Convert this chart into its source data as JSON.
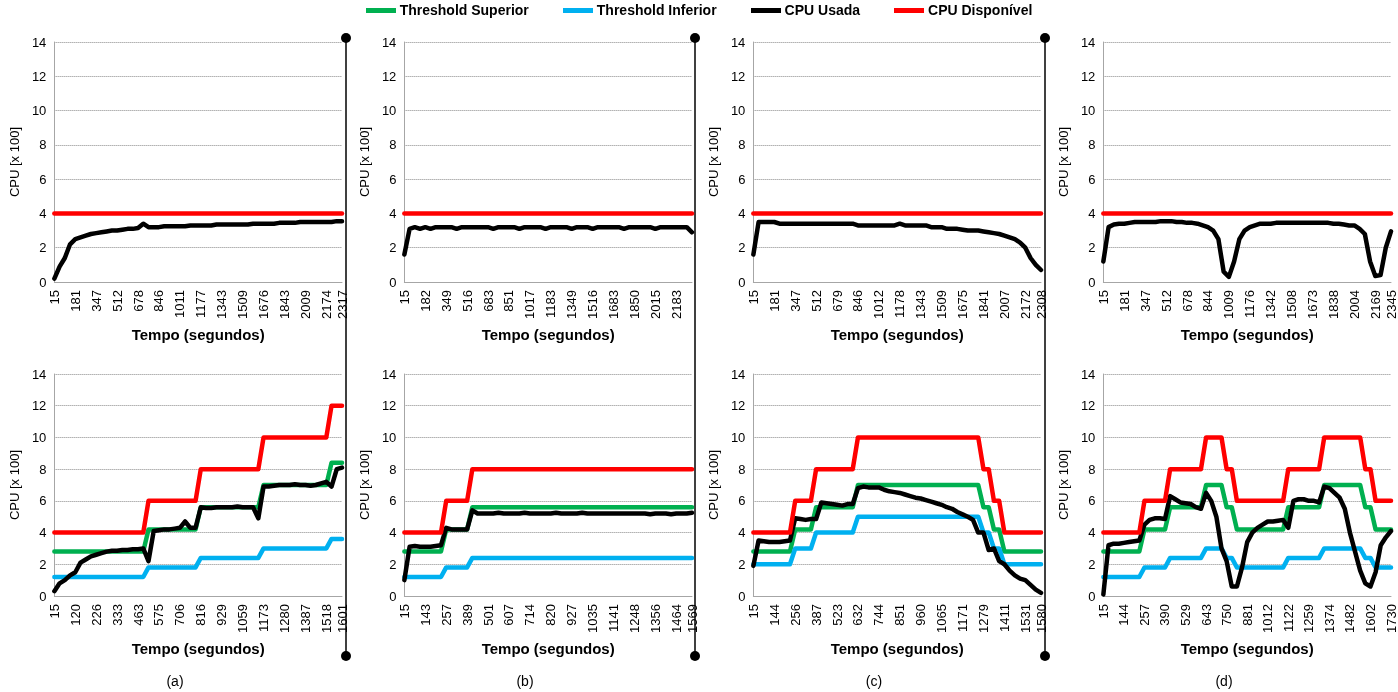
{
  "chart_data": [
    {
      "type": "line",
      "xlabel": "Tempo (segundos)",
      "ylabel": "CPU [x 100]",
      "ylim": [
        0,
        14
      ],
      "yticks": [
        0,
        2,
        4,
        6,
        8,
        10,
        12,
        14
      ],
      "grid": "y",
      "legend": "top",
      "marker": "none",
      "line_style": "solid",
      "categories": [
        "15",
        null,
        null,
        null,
        "181",
        null,
        null,
        null,
        "347",
        null,
        null,
        null,
        "512",
        null,
        null,
        null,
        "678",
        null,
        null,
        null,
        "846",
        null,
        null,
        null,
        "1011",
        null,
        null,
        null,
        "1177",
        null,
        null,
        null,
        "1343",
        null,
        null,
        null,
        "1509",
        null,
        null,
        null,
        "1676",
        null,
        null,
        null,
        "1843",
        null,
        null,
        null,
        "2009",
        null,
        null,
        null,
        "2174",
        null,
        null,
        "2317"
      ],
      "series": [
        {
          "name": "CPU Usada",
          "color": "#000000",
          "values": [
            0.2,
            0.9,
            1.4,
            2.2,
            2.5,
            2.6,
            2.7,
            2.8,
            2.85,
            2.9,
            2.95,
            3.0,
            3.0,
            3.05,
            3.1,
            3.1,
            3.15,
            3.4,
            3.2,
            3.2,
            3.2,
            3.25,
            3.25,
            3.25,
            3.25,
            3.25,
            3.3,
            3.3,
            3.3,
            3.3,
            3.3,
            3.35,
            3.35,
            3.35,
            3.35,
            3.35,
            3.35,
            3.35,
            3.4,
            3.4,
            3.4,
            3.4,
            3.4,
            3.45,
            3.45,
            3.45,
            3.45,
            3.5,
            3.5,
            3.5,
            3.5,
            3.5,
            3.5,
            3.5,
            3.55,
            3.55
          ]
        },
        {
          "name": "CPU Disponível",
          "color": "#ff0000",
          "values": [
            4,
            4,
            4,
            4,
            4,
            4,
            4,
            4,
            4,
            4,
            4,
            4,
            4,
            4,
            4,
            4,
            4,
            4,
            4,
            4,
            4,
            4,
            4,
            4,
            4,
            4,
            4,
            4,
            4,
            4,
            4,
            4,
            4,
            4,
            4,
            4,
            4,
            4,
            4,
            4,
            4,
            4,
            4,
            4,
            4,
            4,
            4,
            4,
            4,
            4,
            4,
            4,
            4,
            4,
            4,
            4
          ]
        }
      ]
    },
    {
      "type": "line",
      "xlabel": "Tempo (segundos)",
      "ylabel": "CPU [x 100]",
      "ylim": [
        0,
        14
      ],
      "yticks": [
        0,
        2,
        4,
        6,
        8,
        10,
        12,
        14
      ],
      "grid": "y",
      "legend": "top",
      "marker": "none",
      "line_style": "solid",
      "categories": [
        "15",
        null,
        null,
        null,
        "182",
        null,
        null,
        null,
        "349",
        null,
        null,
        null,
        "516",
        null,
        null,
        null,
        "683",
        null,
        null,
        null,
        "851",
        null,
        null,
        null,
        "1017",
        null,
        null,
        null,
        "1183",
        null,
        null,
        null,
        "1349",
        null,
        null,
        null,
        "1516",
        null,
        null,
        null,
        "1683",
        null,
        null,
        null,
        "1850",
        null,
        null,
        null,
        "2015",
        null,
        null,
        null,
        "2183",
        null,
        null,
        null
      ],
      "series": [
        {
          "name": "CPU Usada",
          "color": "#000000",
          "values": [
            1.6,
            3.1,
            3.2,
            3.1,
            3.2,
            3.1,
            3.2,
            3.2,
            3.2,
            3.2,
            3.1,
            3.2,
            3.2,
            3.2,
            3.2,
            3.2,
            3.2,
            3.1,
            3.2,
            3.2,
            3.2,
            3.2,
            3.1,
            3.2,
            3.2,
            3.2,
            3.2,
            3.1,
            3.2,
            3.2,
            3.2,
            3.2,
            3.1,
            3.2,
            3.2,
            3.2,
            3.1,
            3.2,
            3.2,
            3.2,
            3.2,
            3.2,
            3.1,
            3.2,
            3.2,
            3.2,
            3.2,
            3.2,
            3.1,
            3.2,
            3.2,
            3.2,
            3.2,
            3.2,
            3.2,
            2.9
          ]
        },
        {
          "name": "CPU Disponível",
          "color": "#ff0000",
          "values": [
            4,
            4,
            4,
            4,
            4,
            4,
            4,
            4,
            4,
            4,
            4,
            4,
            4,
            4,
            4,
            4,
            4,
            4,
            4,
            4,
            4,
            4,
            4,
            4,
            4,
            4,
            4,
            4,
            4,
            4,
            4,
            4,
            4,
            4,
            4,
            4,
            4,
            4,
            4,
            4,
            4,
            4,
            4,
            4,
            4,
            4,
            4,
            4,
            4,
            4,
            4,
            4,
            4,
            4,
            4,
            4
          ]
        }
      ]
    },
    {
      "type": "line",
      "xlabel": "Tempo (segundos)",
      "ylabel": "CPU [x 100]",
      "ylim": [
        0,
        14
      ],
      "yticks": [
        0,
        2,
        4,
        6,
        8,
        10,
        12,
        14
      ],
      "grid": "y",
      "legend": "top",
      "marker": "none",
      "line_style": "solid",
      "categories": [
        "15",
        null,
        null,
        null,
        "181",
        null,
        null,
        null,
        "347",
        null,
        null,
        null,
        "512",
        null,
        null,
        null,
        "679",
        null,
        null,
        null,
        "846",
        null,
        null,
        null,
        "1012",
        null,
        null,
        null,
        "1178",
        null,
        null,
        null,
        "1343",
        null,
        null,
        null,
        "1509",
        null,
        null,
        null,
        "1675",
        null,
        null,
        null,
        "1841",
        null,
        null,
        null,
        "2007",
        null,
        null,
        null,
        "2172",
        null,
        null,
        "2308"
      ],
      "series": [
        {
          "name": "CPU Usada",
          "color": "#000000",
          "values": [
            1.6,
            3.5,
            3.5,
            3.5,
            3.5,
            3.4,
            3.4,
            3.4,
            3.4,
            3.4,
            3.4,
            3.4,
            3.4,
            3.4,
            3.4,
            3.4,
            3.4,
            3.4,
            3.4,
            3.4,
            3.3,
            3.3,
            3.3,
            3.3,
            3.3,
            3.3,
            3.3,
            3.3,
            3.4,
            3.3,
            3.3,
            3.3,
            3.3,
            3.3,
            3.2,
            3.2,
            3.2,
            3.1,
            3.1,
            3.1,
            3.05,
            3.0,
            3.0,
            3.0,
            2.95,
            2.9,
            2.85,
            2.8,
            2.7,
            2.6,
            2.5,
            2.3,
            2.0,
            1.4,
            1.0,
            0.7
          ]
        },
        {
          "name": "CPU Disponível",
          "color": "#ff0000",
          "values": [
            4,
            4,
            4,
            4,
            4,
            4,
            4,
            4,
            4,
            4,
            4,
            4,
            4,
            4,
            4,
            4,
            4,
            4,
            4,
            4,
            4,
            4,
            4,
            4,
            4,
            4,
            4,
            4,
            4,
            4,
            4,
            4,
            4,
            4,
            4,
            4,
            4,
            4,
            4,
            4,
            4,
            4,
            4,
            4,
            4,
            4,
            4,
            4,
            4,
            4,
            4,
            4,
            4,
            4,
            4,
            4
          ]
        }
      ]
    },
    {
      "type": "line",
      "xlabel": "Tempo (segundos)",
      "ylabel": "CPU [x 100]",
      "ylim": [
        0,
        14
      ],
      "yticks": [
        0,
        2,
        4,
        6,
        8,
        10,
        12,
        14
      ],
      "grid": "y",
      "legend": "top",
      "marker": "none",
      "line_style": "solid",
      "categories": [
        "15",
        null,
        null,
        null,
        "181",
        null,
        null,
        null,
        "347",
        null,
        null,
        null,
        "512",
        null,
        null,
        null,
        "678",
        null,
        null,
        null,
        "844",
        null,
        null,
        null,
        "1009",
        null,
        null,
        null,
        "1176",
        null,
        null,
        null,
        "1342",
        null,
        null,
        null,
        "1508",
        null,
        null,
        null,
        "1673",
        null,
        null,
        null,
        "1838",
        null,
        null,
        null,
        "2004",
        null,
        null,
        null,
        "2169",
        null,
        null,
        "2345"
      ],
      "series": [
        {
          "name": "CPU Usada",
          "color": "#000000",
          "values": [
            1.2,
            3.2,
            3.35,
            3.4,
            3.4,
            3.45,
            3.5,
            3.5,
            3.5,
            3.5,
            3.5,
            3.55,
            3.55,
            3.55,
            3.5,
            3.5,
            3.45,
            3.45,
            3.4,
            3.3,
            3.2,
            3.0,
            2.5,
            0.6,
            0.3,
            1.2,
            2.5,
            3.0,
            3.2,
            3.3,
            3.4,
            3.4,
            3.4,
            3.45,
            3.45,
            3.45,
            3.45,
            3.45,
            3.45,
            3.45,
            3.45,
            3.45,
            3.45,
            3.45,
            3.4,
            3.4,
            3.35,
            3.3,
            3.3,
            3.1,
            2.8,
            1.2,
            0.35,
            0.4,
            2.0,
            2.95
          ]
        },
        {
          "name": "CPU Disponível",
          "color": "#ff0000",
          "values": [
            4,
            4,
            4,
            4,
            4,
            4,
            4,
            4,
            4,
            4,
            4,
            4,
            4,
            4,
            4,
            4,
            4,
            4,
            4,
            4,
            4,
            4,
            4,
            4,
            4,
            4,
            4,
            4,
            4,
            4,
            4,
            4,
            4,
            4,
            4,
            4,
            4,
            4,
            4,
            4,
            4,
            4,
            4,
            4,
            4,
            4,
            4,
            4,
            4,
            4,
            4,
            4,
            4,
            4,
            4,
            4
          ]
        }
      ]
    },
    {
      "type": "line",
      "xlabel": "Tempo (segundos)",
      "ylabel": "CPU [x 100]",
      "ylim": [
        0,
        14
      ],
      "yticks": [
        0,
        2,
        4,
        6,
        8,
        10,
        12,
        14
      ],
      "grid": "y",
      "legend": "top",
      "marker": "none",
      "line_style": "solid",
      "annotations": [
        "(a)"
      ],
      "categories": [
        "15",
        null,
        null,
        null,
        "120",
        null,
        null,
        null,
        "226",
        null,
        null,
        null,
        "333",
        null,
        null,
        null,
        "463",
        null,
        null,
        null,
        "575",
        null,
        null,
        null,
        "706",
        null,
        null,
        null,
        "816",
        null,
        null,
        null,
        "929",
        null,
        null,
        null,
        "1059",
        null,
        null,
        null,
        "1173",
        null,
        null,
        null,
        "1280",
        null,
        null,
        null,
        "1387",
        null,
        null,
        null,
        "1518",
        null,
        null,
        "1601"
      ],
      "series": [
        {
          "name": "Threshold Superior",
          "color": "#00b050",
          "values": [
            2.8,
            2.8,
            2.8,
            2.8,
            2.8,
            2.8,
            2.8,
            2.8,
            2.8,
            2.8,
            2.8,
            2.8,
            2.8,
            2.8,
            2.8,
            2.8,
            2.8,
            2.8,
            4.2,
            4.2,
            4.2,
            4.2,
            4.2,
            4.2,
            4.2,
            4.2,
            4.2,
            4.2,
            5.6,
            5.6,
            5.6,
            5.6,
            5.6,
            5.6,
            5.6,
            5.6,
            5.6,
            5.6,
            5.6,
            5.6,
            7,
            7,
            7,
            7,
            7,
            7,
            7,
            7,
            7,
            7,
            7,
            7,
            7,
            8.4,
            8.4,
            8.4
          ]
        },
        {
          "name": "Threshold Inferior",
          "color": "#00b0f0",
          "values": [
            1.2,
            1.2,
            1.2,
            1.2,
            1.2,
            1.2,
            1.2,
            1.2,
            1.2,
            1.2,
            1.2,
            1.2,
            1.2,
            1.2,
            1.2,
            1.2,
            1.2,
            1.2,
            1.8,
            1.8,
            1.8,
            1.8,
            1.8,
            1.8,
            1.8,
            1.8,
            1.8,
            1.8,
            2.4,
            2.4,
            2.4,
            2.4,
            2.4,
            2.4,
            2.4,
            2.4,
            2.4,
            2.4,
            2.4,
            2.4,
            3,
            3,
            3,
            3,
            3,
            3,
            3,
            3,
            3,
            3,
            3,
            3,
            3,
            3.6,
            3.6,
            3.6
          ]
        },
        {
          "name": "CPU Usada",
          "color": "#000000",
          "values": [
            0.3,
            0.8,
            1.0,
            1.3,
            1.5,
            2.1,
            2.3,
            2.5,
            2.6,
            2.7,
            2.8,
            2.85,
            2.85,
            2.9,
            2.9,
            2.95,
            2.95,
            3.0,
            2.2,
            4.1,
            4.15,
            4.2,
            4.2,
            4.25,
            4.3,
            4.7,
            4.3,
            4.3,
            5.6,
            5.55,
            5.55,
            5.6,
            5.6,
            5.6,
            5.6,
            5.65,
            5.6,
            5.6,
            5.6,
            4.9,
            6.9,
            6.9,
            6.95,
            7.0,
            7.0,
            7.0,
            7.05,
            7.0,
            7.0,
            6.95,
            7.0,
            7.1,
            7.2,
            6.9,
            8.0,
            8.1
          ]
        },
        {
          "name": "CPU Disponível",
          "color": "#ff0000",
          "values": [
            4,
            4,
            4,
            4,
            4,
            4,
            4,
            4,
            4,
            4,
            4,
            4,
            4,
            4,
            4,
            4,
            4,
            4,
            6,
            6,
            6,
            6,
            6,
            6,
            6,
            6,
            6,
            6,
            8,
            8,
            8,
            8,
            8,
            8,
            8,
            8,
            8,
            8,
            8,
            8,
            10,
            10,
            10,
            10,
            10,
            10,
            10,
            10,
            10,
            10,
            10,
            10,
            10,
            12,
            12,
            12
          ]
        }
      ]
    },
    {
      "type": "line",
      "xlabel": "Tempo (segundos)",
      "ylabel": "CPU [x 100]",
      "ylim": [
        0,
        14
      ],
      "yticks": [
        0,
        2,
        4,
        6,
        8,
        10,
        12,
        14
      ],
      "grid": "y",
      "legend": "top",
      "marker": "none",
      "line_style": "solid",
      "annotations": [
        "(b)"
      ],
      "categories": [
        "15",
        null,
        null,
        null,
        "143",
        null,
        null,
        null,
        "257",
        null,
        null,
        null,
        "389",
        null,
        null,
        null,
        "501",
        null,
        null,
        null,
        "607",
        null,
        null,
        null,
        "714",
        null,
        null,
        null,
        "820",
        null,
        null,
        null,
        "927",
        null,
        null,
        null,
        "1035",
        null,
        null,
        null,
        "1141",
        null,
        null,
        null,
        "1248",
        null,
        null,
        null,
        "1356",
        null,
        null,
        null,
        "1464",
        null,
        null,
        "1569"
      ],
      "series": [
        {
          "name": "Threshold Superior",
          "color": "#00b050",
          "values": [
            2.8,
            2.8,
            2.8,
            2.8,
            2.8,
            2.8,
            2.8,
            2.8,
            4.2,
            4.2,
            4.2,
            4.2,
            4.2,
            5.6,
            5.6,
            5.6,
            5.6,
            5.6,
            5.6,
            5.6,
            5.6,
            5.6,
            5.6,
            5.6,
            5.6,
            5.6,
            5.6,
            5.6,
            5.6,
            5.6,
            5.6,
            5.6,
            5.6,
            5.6,
            5.6,
            5.6,
            5.6,
            5.6,
            5.6,
            5.6,
            5.6,
            5.6,
            5.6,
            5.6,
            5.6,
            5.6,
            5.6,
            5.6,
            5.6,
            5.6,
            5.6,
            5.6,
            5.6,
            5.6,
            5.6,
            5.6
          ]
        },
        {
          "name": "Threshold Inferior",
          "color": "#00b0f0",
          "values": [
            1.2,
            1.2,
            1.2,
            1.2,
            1.2,
            1.2,
            1.2,
            1.2,
            1.8,
            1.8,
            1.8,
            1.8,
            1.8,
            2.4,
            2.4,
            2.4,
            2.4,
            2.4,
            2.4,
            2.4,
            2.4,
            2.4,
            2.4,
            2.4,
            2.4,
            2.4,
            2.4,
            2.4,
            2.4,
            2.4,
            2.4,
            2.4,
            2.4,
            2.4,
            2.4,
            2.4,
            2.4,
            2.4,
            2.4,
            2.4,
            2.4,
            2.4,
            2.4,
            2.4,
            2.4,
            2.4,
            2.4,
            2.4,
            2.4,
            2.4,
            2.4,
            2.4,
            2.4,
            2.4,
            2.4,
            2.4
          ]
        },
        {
          "name": "CPU Usada",
          "color": "#000000",
          "values": [
            1.0,
            3.1,
            3.15,
            3.1,
            3.1,
            3.1,
            3.15,
            3.2,
            4.3,
            4.2,
            4.2,
            4.2,
            4.2,
            5.4,
            5.2,
            5.2,
            5.2,
            5.2,
            5.25,
            5.2,
            5.2,
            5.2,
            5.2,
            5.25,
            5.2,
            5.2,
            5.2,
            5.2,
            5.2,
            5.25,
            5.2,
            5.2,
            5.2,
            5.2,
            5.25,
            5.2,
            5.2,
            5.2,
            5.2,
            5.2,
            5.2,
            5.2,
            5.2,
            5.2,
            5.2,
            5.2,
            5.2,
            5.15,
            5.2,
            5.2,
            5.2,
            5.15,
            5.2,
            5.2,
            5.2,
            5.25
          ]
        },
        {
          "name": "CPU Disponível",
          "color": "#ff0000",
          "values": [
            4,
            4,
            4,
            4,
            4,
            4,
            4,
            4,
            6,
            6,
            6,
            6,
            6,
            8,
            8,
            8,
            8,
            8,
            8,
            8,
            8,
            8,
            8,
            8,
            8,
            8,
            8,
            8,
            8,
            8,
            8,
            8,
            8,
            8,
            8,
            8,
            8,
            8,
            8,
            8,
            8,
            8,
            8,
            8,
            8,
            8,
            8,
            8,
            8,
            8,
            8,
            8,
            8,
            8,
            8,
            8
          ]
        }
      ]
    },
    {
      "type": "line",
      "xlabel": "Tempo (segundos)",
      "ylabel": "CPU [x 100]",
      "ylim": [
        0,
        14
      ],
      "yticks": [
        0,
        2,
        4,
        6,
        8,
        10,
        12,
        14
      ],
      "grid": "y",
      "legend": "top",
      "marker": "none",
      "line_style": "solid",
      "annotations": [
        "(c)"
      ],
      "categories": [
        "15",
        null,
        null,
        null,
        "144",
        null,
        null,
        null,
        "256",
        null,
        null,
        null,
        "387",
        null,
        null,
        null,
        "523",
        null,
        null,
        null,
        "632",
        null,
        null,
        null,
        "744",
        null,
        null,
        null,
        "851",
        null,
        null,
        null,
        "960",
        null,
        null,
        null,
        "1065",
        null,
        null,
        null,
        "1171",
        null,
        null,
        null,
        "1279",
        null,
        null,
        null,
        "1411",
        null,
        null,
        null,
        "1531",
        null,
        null,
        "1580"
      ],
      "series": [
        {
          "name": "Threshold Superior",
          "color": "#00b050",
          "values": [
            2.8,
            2.8,
            2.8,
            2.8,
            2.8,
            2.8,
            2.8,
            2.8,
            4.2,
            4.2,
            4.2,
            4.2,
            5.6,
            5.6,
            5.6,
            5.6,
            5.6,
            5.6,
            5.6,
            5.6,
            7,
            7,
            7,
            7,
            7,
            7,
            7,
            7,
            7,
            7,
            7,
            7,
            7,
            7,
            7,
            7,
            7,
            7,
            7,
            7,
            7,
            7,
            7,
            7,
            5.6,
            5.6,
            4.2,
            4.2,
            2.8,
            2.8,
            2.8,
            2.8,
            2.8,
            2.8,
            2.8,
            2.8
          ]
        },
        {
          "name": "Threshold Inferior",
          "color": "#00b0f0",
          "values": [
            2,
            2,
            2,
            2,
            2,
            2,
            2,
            2,
            3,
            3,
            3,
            3,
            4,
            4,
            4,
            4,
            4,
            4,
            4,
            4,
            5,
            5,
            5,
            5,
            5,
            5,
            5,
            5,
            5,
            5,
            5,
            5,
            5,
            5,
            5,
            5,
            5,
            5,
            5,
            5,
            5,
            5,
            5,
            5,
            4,
            4,
            3,
            3,
            2,
            2,
            2,
            2,
            2,
            2,
            2,
            2
          ]
        },
        {
          "name": "CPU Usada",
          "color": "#000000",
          "values": [
            1.9,
            3.5,
            3.45,
            3.4,
            3.4,
            3.4,
            3.45,
            3.5,
            4.9,
            4.85,
            4.8,
            4.85,
            4.85,
            5.9,
            5.85,
            5.8,
            5.75,
            5.7,
            5.8,
            5.8,
            6.8,
            6.9,
            6.85,
            6.85,
            6.85,
            6.7,
            6.6,
            6.55,
            6.5,
            6.4,
            6.3,
            6.2,
            6.15,
            6.05,
            5.95,
            5.85,
            5.75,
            5.6,
            5.5,
            5.3,
            5.15,
            5.0,
            4.8,
            4.0,
            4.0,
            2.9,
            3.0,
            2.2,
            2.0,
            1.6,
            1.3,
            1.1,
            1.0,
            0.7,
            0.4,
            0.2
          ]
        },
        {
          "name": "CPU Disponível",
          "color": "#ff0000",
          "values": [
            4,
            4,
            4,
            4,
            4,
            4,
            4,
            4,
            6,
            6,
            6,
            6,
            8,
            8,
            8,
            8,
            8,
            8,
            8,
            8,
            10,
            10,
            10,
            10,
            10,
            10,
            10,
            10,
            10,
            10,
            10,
            10,
            10,
            10,
            10,
            10,
            10,
            10,
            10,
            10,
            10,
            10,
            10,
            10,
            8,
            8,
            6,
            6,
            4,
            4,
            4,
            4,
            4,
            4,
            4,
            4
          ]
        }
      ]
    },
    {
      "type": "line",
      "xlabel": "Tempo (segundos)",
      "ylabel": "CPU [x 100]",
      "ylim": [
        0,
        14
      ],
      "yticks": [
        0,
        2,
        4,
        6,
        8,
        10,
        12,
        14
      ],
      "grid": "y",
      "legend": "top",
      "marker": "none",
      "line_style": "solid",
      "annotations": [
        "(d)"
      ],
      "categories": [
        "15",
        null,
        null,
        null,
        "144",
        null,
        null,
        null,
        "257",
        null,
        null,
        null,
        "390",
        null,
        null,
        null,
        "529",
        null,
        null,
        null,
        "643",
        null,
        null,
        null,
        "750",
        null,
        null,
        null,
        "881",
        null,
        null,
        null,
        "1012",
        null,
        null,
        null,
        "1122",
        null,
        null,
        null,
        "1259",
        null,
        null,
        null,
        "1374",
        null,
        null,
        null,
        "1482",
        null,
        null,
        null,
        "1602",
        null,
        null,
        null,
        "1730"
      ],
      "series": [
        {
          "name": "Threshold Superior",
          "color": "#00b050",
          "values": [
            2.8,
            2.8,
            2.8,
            2.8,
            2.8,
            2.8,
            2.8,
            2.8,
            4.2,
            4.2,
            4.2,
            4.2,
            4.2,
            5.6,
            5.6,
            5.6,
            5.6,
            5.6,
            5.6,
            5.6,
            7,
            7,
            7,
            7,
            5.6,
            5.6,
            4.2,
            4.2,
            4.2,
            4.2,
            4.2,
            4.2,
            4.2,
            4.2,
            4.2,
            4.2,
            5.6,
            5.6,
            5.6,
            5.6,
            5.6,
            5.6,
            5.6,
            7,
            7,
            7,
            7,
            7,
            7,
            7,
            7,
            5.6,
            5.6,
            4.2,
            4.2,
            4.2,
            4.2
          ]
        },
        {
          "name": "Threshold Inferior",
          "color": "#00b0f0",
          "values": [
            1.2,
            1.2,
            1.2,
            1.2,
            1.2,
            1.2,
            1.2,
            1.2,
            1.8,
            1.8,
            1.8,
            1.8,
            1.8,
            2.4,
            2.4,
            2.4,
            2.4,
            2.4,
            2.4,
            2.4,
            3,
            3,
            3,
            3,
            2.4,
            2.4,
            1.8,
            1.8,
            1.8,
            1.8,
            1.8,
            1.8,
            1.8,
            1.8,
            1.8,
            1.8,
            2.4,
            2.4,
            2.4,
            2.4,
            2.4,
            2.4,
            2.4,
            3,
            3,
            3,
            3,
            3,
            3,
            3,
            3,
            2.4,
            2.4,
            1.8,
            1.8,
            1.8,
            1.8
          ]
        },
        {
          "name": "CPU Usada",
          "color": "#000000",
          "values": [
            0.1,
            3.2,
            3.3,
            3.3,
            3.35,
            3.4,
            3.45,
            3.5,
            4.5,
            4.8,
            4.9,
            4.9,
            4.85,
            6.3,
            6.1,
            5.9,
            5.85,
            5.8,
            5.6,
            5.5,
            6.5,
            6.0,
            5.0,
            3.0,
            2.2,
            0.6,
            0.6,
            1.8,
            3.4,
            4.0,
            4.3,
            4.5,
            4.7,
            4.7,
            4.75,
            4.8,
            4.3,
            6.0,
            6.1,
            6.1,
            6.0,
            6.0,
            5.9,
            6.9,
            6.8,
            6.5,
            6.2,
            5.5,
            4.0,
            2.8,
            1.6,
            0.8,
            0.6,
            1.5,
            3.2,
            3.7,
            4.1
          ]
        },
        {
          "name": "CPU Disponível",
          "color": "#ff0000",
          "values": [
            4,
            4,
            4,
            4,
            4,
            4,
            4,
            4,
            6,
            6,
            6,
            6,
            6,
            8,
            8,
            8,
            8,
            8,
            8,
            8,
            10,
            10,
            10,
            10,
            8,
            8,
            6,
            6,
            6,
            6,
            6,
            6,
            6,
            6,
            6,
            6,
            8,
            8,
            8,
            8,
            8,
            8,
            8,
            10,
            10,
            10,
            10,
            10,
            10,
            10,
            10,
            8,
            8,
            6,
            6,
            6,
            6
          ]
        }
      ]
    }
  ]
}
